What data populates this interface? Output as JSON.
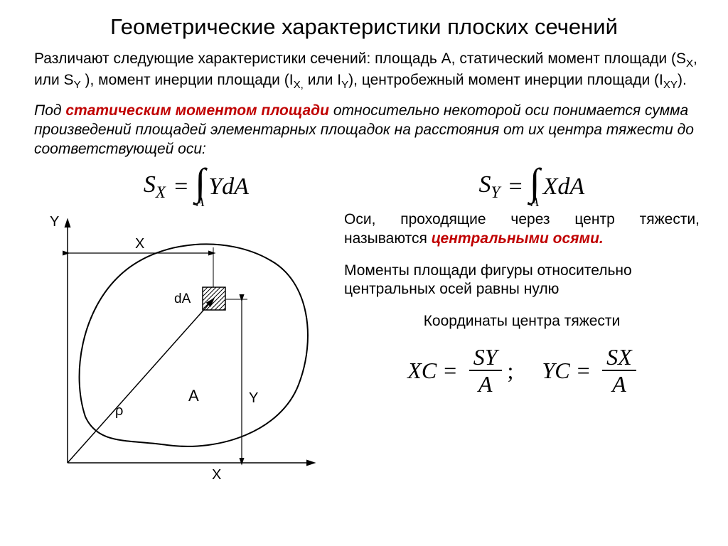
{
  "title": "Геометрические характеристики плоских сечений",
  "intro": "Различают следующие характеристики сечений: площадь А, статический момент площади (S<sub class=\"sub\">X</sub>, или S<sub class=\"sub\">Y</sub> ), момент инерции площади (I<sub class=\"sub\">X,</sub> или I<sub class=\"sub\">Y</sub>), центробежный момент инерции площади (I<sub class=\"sub\">XY</sub>).",
  "defn_pre": "Под ",
  "defn_red": "статическим моментом площади",
  "defn_post": " относительно некоторой оси понимается сумма произведений площадей элементарных площадок на расстояния от их центра тяжести до соответствующей оси:",
  "formula1": {
    "lhs_base": "S",
    "lhs_sub": "X",
    "int_sub": "A",
    "integrand": "YdA"
  },
  "formula2": {
    "lhs_base": "S",
    "lhs_sub": "Y",
    "int_sub": "A",
    "integrand": "XdA"
  },
  "right1_pre": "Оси,  проходящие  через  центр  тяжести, называются ",
  "right1_red": "центральными осями.",
  "right2": "Моменты площади фигуры относительно центральных осей равны нулю",
  "right3": "Координаты центра тяжести",
  "centroid1": {
    "base": "X",
    "sub": "C",
    "num_base": "S",
    "num_sub": "Y",
    "den": "A"
  },
  "centroid2": {
    "base": "Y",
    "sub": "C",
    "num_base": "S",
    "num_sub": "X",
    "den": "A"
  },
  "diagram": {
    "Y_axis_label": "Y",
    "X_axis_label": "X",
    "X_dim_label": "X",
    "Y_dim_label": "Y",
    "dA_label": "dA",
    "rho_label": "ρ",
    "A_label": "A",
    "colors": {
      "stroke": "#000000",
      "hatch": "#000000",
      "bg": "#ffffff"
    }
  }
}
